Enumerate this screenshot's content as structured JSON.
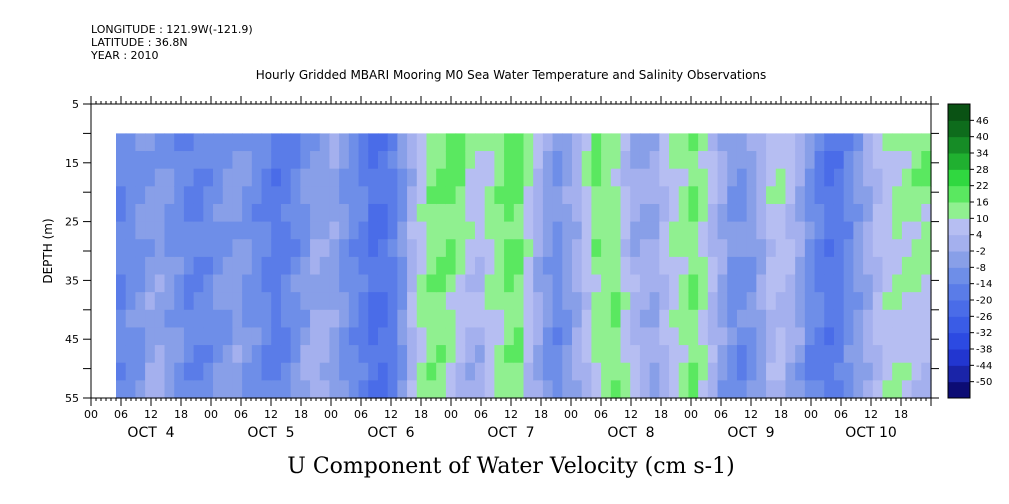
{
  "metadata": {
    "longitude": "LONGITUDE : 121.9W(-121.9)",
    "latitude": "LATITUDE : 36.8N",
    "year": "YEAR : 2010"
  },
  "chart_data": {
    "type": "heatmap",
    "title": "Hourly Gridded MBARI Mooring M0 Sea Water Temperature and Salinity Observations",
    "xlabel": "U Component of Water Velocity (cm s-1)",
    "ylabel": "DEPTH (m)",
    "x_range_hours": [
      0,
      168
    ],
    "y_range_m": [
      5,
      55
    ],
    "y_inverted": true,
    "data_depth_range_m": [
      10,
      55
    ],
    "data_time_start_hour": 5,
    "y_ticks": [
      5,
      15,
      25,
      35,
      45,
      55
    ],
    "x_hour_ticks": [
      "00",
      "06",
      "12",
      "18",
      "00",
      "06",
      "12",
      "18",
      "00",
      "06",
      "12",
      "18",
      "00",
      "06",
      "12",
      "18",
      "00",
      "06",
      "12",
      "18",
      "00",
      "06",
      "12",
      "18",
      "00",
      "06",
      "12",
      "18"
    ],
    "x_day_labels": [
      "OCT  4",
      "OCT  5",
      "OCT  6",
      "OCT  7",
      "OCT  8",
      "OCT  9",
      "OCT 10"
    ],
    "colorbar": {
      "levels": [
        -50,
        -44,
        -38,
        -32,
        -26,
        -20,
        -14,
        -8,
        -2,
        4,
        10,
        16,
        22,
        28,
        34,
        40,
        46
      ],
      "labels": [
        "46",
        "40",
        "34",
        "28",
        "22",
        "16",
        "10",
        "4",
        "-2",
        "-8",
        "-14",
        "-20",
        "-26",
        "-32",
        "-38",
        "-44",
        "-50"
      ],
      "colors_low_to_high": [
        "#0c0c74",
        "#1a24a8",
        "#2236d0",
        "#2c4ae2",
        "#3a5ce6",
        "#4a6ce8",
        "#5a7ce8",
        "#6e8ee8",
        "#889fe8",
        "#a4b0ee",
        "#b6bef2",
        "#90f090",
        "#5ae860",
        "#30d840",
        "#20b030",
        "#168c26",
        "#0e6c1c",
        "#0a5214"
      ]
    },
    "time_profile_hours": [
      5,
      9,
      13,
      17,
      21,
      25,
      29,
      33,
      37,
      41,
      45,
      49,
      53,
      57,
      61,
      65,
      69,
      73,
      77,
      81,
      85,
      89,
      93,
      97,
      101,
      105,
      109,
      113,
      117,
      121,
      125,
      129,
      133,
      137,
      141,
      145,
      149,
      153,
      157,
      161,
      165
    ],
    "values_upper": [
      -14,
      -10,
      -6,
      -12,
      -16,
      -10,
      -6,
      -12,
      -18,
      -14,
      -8,
      -4,
      -12,
      -20,
      -16,
      4,
      16,
      22,
      10,
      14,
      22,
      4,
      -8,
      2,
      16,
      10,
      -4,
      0,
      10,
      16,
      4,
      -8,
      -2,
      14,
      4,
      -14,
      -20,
      -8,
      4,
      10,
      16
    ],
    "values_lower": [
      -12,
      -10,
      0,
      -6,
      -14,
      -10,
      -4,
      -10,
      -16,
      -8,
      4,
      -4,
      -14,
      -22,
      -16,
      10,
      16,
      4,
      -4,
      10,
      16,
      -2,
      -14,
      -4,
      10,
      16,
      4,
      -2,
      10,
      16,
      -2,
      -14,
      -10,
      4,
      -4,
      -16,
      -18,
      -6,
      4,
      10,
      4
    ]
  }
}
